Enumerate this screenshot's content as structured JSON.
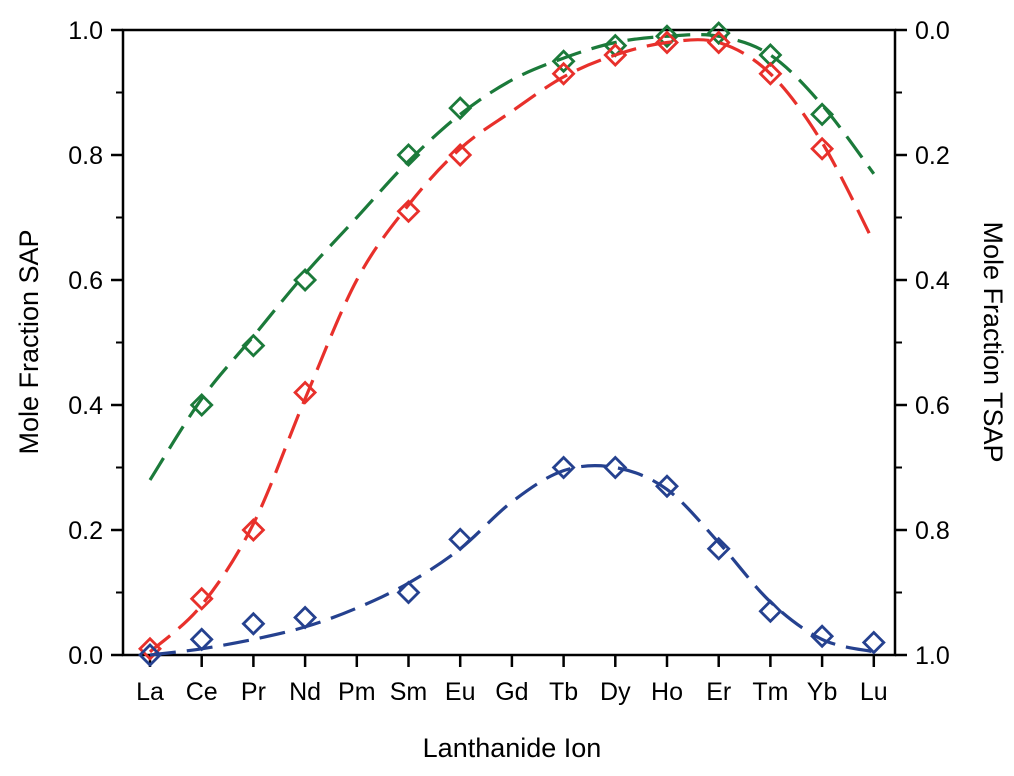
{
  "chart_data": {
    "type": "scatter",
    "xlabel": "Lanthanide Ion",
    "ylabel": "Mole Fraction SAP",
    "ylabel_right": "Mole Fraction TSAP",
    "categories": [
      "La",
      "Ce",
      "Pr",
      "Nd",
      "Pm",
      "Sm",
      "Eu",
      "Gd",
      "Tb",
      "Dy",
      "Ho",
      "Er",
      "Tm",
      "Yb",
      "Lu"
    ],
    "ylim": [
      0,
      1
    ],
    "ylim_right": [
      1,
      0
    ],
    "yticks": [
      "0.0",
      "0.2",
      "0.4",
      "0.6",
      "0.8",
      "1.0"
    ],
    "yticks_right": [
      "1.0",
      "0.8",
      "0.6",
      "0.4",
      "0.2",
      "0.0"
    ],
    "grid": false,
    "marker": "open-diamond",
    "fit_line_style": "dashed",
    "series": [
      {
        "color": "#1b7a3a",
        "points": [
          [
            "Ce",
            0.4
          ],
          [
            "Pr",
            0.495
          ],
          [
            "Nd",
            0.6
          ],
          [
            "Sm",
            0.8
          ],
          [
            "Eu",
            0.875
          ],
          [
            "Tb",
            0.95
          ],
          [
            "Dy",
            0.975
          ],
          [
            "Ho",
            0.99
          ],
          [
            "Er",
            0.995
          ],
          [
            "Tm",
            0.96
          ],
          [
            "Yb",
            0.865
          ]
        ],
        "fit": [
          [
            0,
            0.28
          ],
          [
            1,
            0.41
          ],
          [
            2,
            0.51
          ],
          [
            3,
            0.61
          ],
          [
            4,
            0.7
          ],
          [
            5,
            0.79
          ],
          [
            6,
            0.865
          ],
          [
            7,
            0.92
          ],
          [
            8,
            0.955
          ],
          [
            9,
            0.98
          ],
          [
            10,
            0.99
          ],
          [
            11,
            0.99
          ],
          [
            12,
            0.96
          ],
          [
            13,
            0.88
          ],
          [
            14,
            0.77
          ]
        ]
      },
      {
        "color": "#e8302b",
        "points": [
          [
            "La",
            0.01
          ],
          [
            "Ce",
            0.09
          ],
          [
            "Pr",
            0.2
          ],
          [
            "Nd",
            0.42
          ],
          [
            "Sm",
            0.71
          ],
          [
            "Eu",
            0.8
          ],
          [
            "Tb",
            0.93
          ],
          [
            "Dy",
            0.96
          ],
          [
            "Ho",
            0.98
          ],
          [
            "Er",
            0.98
          ],
          [
            "Tm",
            0.93
          ],
          [
            "Yb",
            0.81
          ]
        ],
        "fit": [
          [
            0,
            0.005
          ],
          [
            1,
            0.08
          ],
          [
            2,
            0.21
          ],
          [
            3,
            0.41
          ],
          [
            4,
            0.6
          ],
          [
            5,
            0.72
          ],
          [
            6,
            0.81
          ],
          [
            7,
            0.87
          ],
          [
            8,
            0.925
          ],
          [
            9,
            0.96
          ],
          [
            10,
            0.98
          ],
          [
            11,
            0.98
          ],
          [
            12,
            0.93
          ],
          [
            13,
            0.82
          ],
          [
            14,
            0.66
          ]
        ]
      },
      {
        "color": "#25418f",
        "points": [
          [
            "La",
            0.0
          ],
          [
            "Ce",
            0.025
          ],
          [
            "Pr",
            0.05
          ],
          [
            "Nd",
            0.06
          ],
          [
            "Sm",
            0.1
          ],
          [
            "Eu",
            0.185
          ],
          [
            "Tb",
            0.3
          ],
          [
            "Dy",
            0.3
          ],
          [
            "Ho",
            0.27
          ],
          [
            "Er",
            0.17
          ],
          [
            "Tm",
            0.07
          ],
          [
            "Yb",
            0.03
          ],
          [
            "Lu",
            0.02
          ]
        ],
        "fit": [
          [
            0,
            0.0
          ],
          [
            1,
            0.01
          ],
          [
            2,
            0.025
          ],
          [
            3,
            0.045
          ],
          [
            4,
            0.075
          ],
          [
            5,
            0.115
          ],
          [
            6,
            0.17
          ],
          [
            7,
            0.245
          ],
          [
            8,
            0.295
          ],
          [
            9,
            0.3
          ],
          [
            10,
            0.265
          ],
          [
            11,
            0.18
          ],
          [
            12,
            0.085
          ],
          [
            13,
            0.025
          ],
          [
            14,
            0.005
          ]
        ]
      }
    ]
  }
}
